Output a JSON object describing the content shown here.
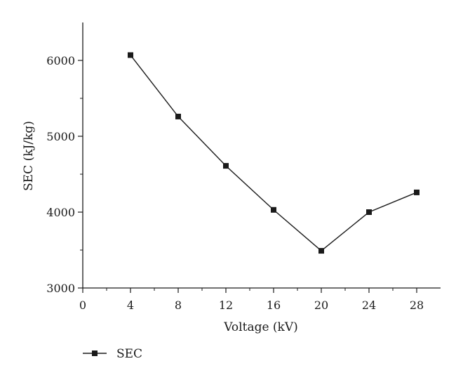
{
  "chart_data": {
    "type": "line",
    "x": [
      4,
      8,
      12,
      16,
      20,
      24,
      28
    ],
    "series": [
      {
        "name": "SEC",
        "values": [
          6070,
          5260,
          4610,
          4030,
          3490,
          4000,
          4260
        ]
      }
    ],
    "xlabel": "Voltage (kV)",
    "ylabel": "SEC (kJ/kg)",
    "xlim": [
      0,
      30
    ],
    "ylim": [
      3000,
      6500
    ],
    "xticks": [
      0,
      4,
      8,
      12,
      16,
      20,
      24,
      28
    ],
    "xtick_labels": [
      "0",
      "4",
      "8",
      "12",
      "16",
      "20",
      "24",
      "28"
    ],
    "yticks": [
      3000,
      4000,
      5000,
      6000
    ],
    "ytick_labels": [
      "3000",
      "4000",
      "5000",
      "6000"
    ],
    "grid": false,
    "legend_position": "bottom-left",
    "colors": {
      "line": "#1a1a1a",
      "marker": "#1a1a1a",
      "axis": "#1a1a1a"
    },
    "marker_shape": "square"
  }
}
